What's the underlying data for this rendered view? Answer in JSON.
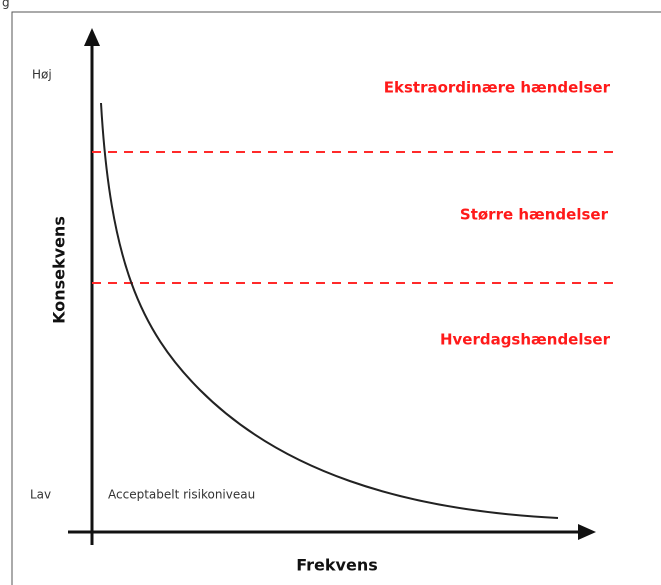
{
  "fragment": "g",
  "axes": {
    "y_label": "Konsekvens",
    "x_label": "Frekvens",
    "y_high": "Høj",
    "y_low": "Lav"
  },
  "zones": [
    "Ekstraordinære hændelser",
    "Større hændelser",
    "Hverdagshændelser"
  ],
  "acceptable_label": "Acceptabelt risikoniveau"
}
